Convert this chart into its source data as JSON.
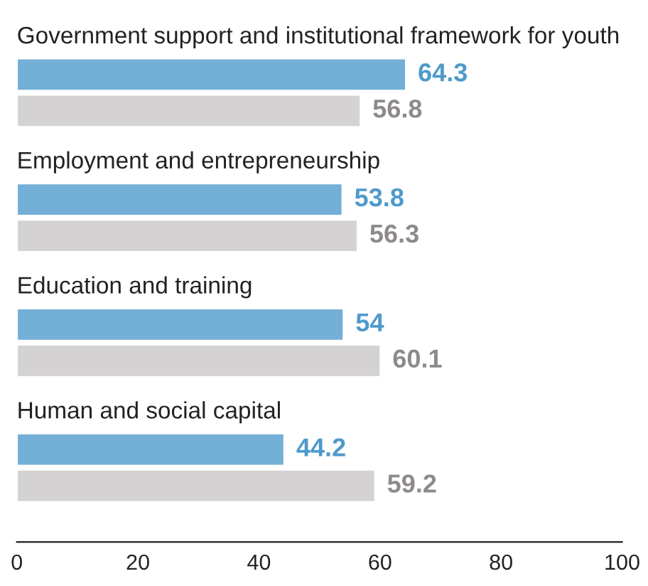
{
  "chart_data": {
    "type": "bar",
    "orientation": "horizontal",
    "categories": [
      "Government support and institutional framework for youth",
      "Employment and entrepreneurship",
      "Education and training",
      "Human and social capital"
    ],
    "series": [
      {
        "color": "#73afd6",
        "values": [
          64.3,
          53.8,
          54,
          44.2
        ]
      },
      {
        "color": "#d4d2d2",
        "values": [
          56.8,
          56.3,
          60.1,
          59.2
        ]
      }
    ],
    "xlim": [
      0,
      100
    ],
    "xticks": [
      0,
      20,
      40,
      60,
      80,
      100
    ],
    "data_labels": true,
    "grid": false,
    "legend": false
  }
}
